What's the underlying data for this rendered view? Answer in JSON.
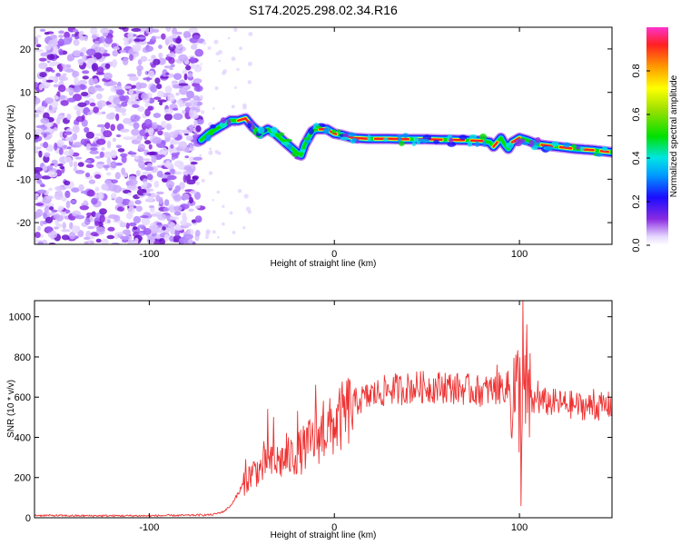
{
  "title": "S174.2025.298.02.34.R16",
  "chart_data": [
    {
      "type": "heatmap",
      "xlabel": "Height of straight line (km)",
      "ylabel": "Frequency (Hz)",
      "xlim": [
        -162,
        150
      ],
      "ylim": [
        -25,
        25
      ],
      "xticks": [
        "-100",
        "0",
        "100"
      ],
      "xtick_values": [
        -100,
        0,
        100
      ],
      "yticks": [
        "20",
        "10",
        "0",
        "-10",
        "-20"
      ],
      "ytick_values": [
        20,
        10,
        0,
        -10,
        -20
      ],
      "noise_region_x": [
        -162,
        -72
      ],
      "ridge": {
        "x": [
          -72,
          -68,
          -64,
          -60,
          -56,
          -52,
          -48,
          -44,
          -40,
          -36,
          -32,
          -28,
          -24,
          -20,
          -18,
          -16,
          -14,
          -12,
          -10,
          -8,
          -6,
          -4,
          0,
          4,
          10,
          20,
          30,
          40,
          50,
          60,
          70,
          80,
          84,
          86,
          88,
          90,
          92,
          94,
          96,
          100,
          104,
          110,
          120,
          130,
          140,
          150
        ],
        "y": [
          -1,
          0.5,
          1.5,
          2.5,
          3.5,
          3.5,
          4,
          2,
          0.5,
          1.5,
          0.5,
          -1,
          -2.5,
          -4,
          -4.5,
          -2,
          -0.5,
          1,
          1.5,
          1.5,
          1.5,
          1.5,
          0.5,
          0.2,
          -0.5,
          -0.7,
          -0.7,
          -0.8,
          -0.8,
          -0.9,
          -1,
          -1.2,
          -1.5,
          -2.5,
          -1.5,
          -0.5,
          -2,
          -3,
          -1.5,
          -0.5,
          -1,
          -2,
          -2.5,
          -3,
          -3.3,
          -3.8
        ]
      },
      "colorbar": {
        "label": "Normalized spectral amplitude",
        "range": [
          0,
          1
        ],
        "ticks": [
          "0.0",
          "0.2",
          "0.4",
          "0.6",
          "0.8"
        ],
        "tick_values": [
          0,
          0.2,
          0.4,
          0.6,
          0.8
        ]
      }
    },
    {
      "type": "line",
      "color": "#ee3333",
      "xlabel": "Height of straight line (km)",
      "ylabel": "SNR (10 * v/v)",
      "xlim": [
        -162,
        150
      ],
      "ylim": [
        0,
        1080
      ],
      "xticks": [
        "-100",
        "0",
        "100"
      ],
      "xtick_values": [
        -100,
        0,
        100
      ],
      "yticks": [
        "0",
        "200",
        "400",
        "600",
        "800",
        "1000"
      ],
      "ytick_values": [
        0,
        200,
        400,
        600,
        800,
        1000
      ],
      "envelope": {
        "x": [
          -162,
          -140,
          -120,
          -100,
          -80,
          -66,
          -60,
          -56,
          -52,
          -48,
          -44,
          -40,
          -36,
          -30,
          -24,
          -18,
          -12,
          -6,
          0,
          6,
          12,
          18,
          24,
          30,
          36,
          44,
          50,
          60,
          70,
          80,
          88,
          92,
          96,
          100,
          102,
          104,
          110,
          120,
          130,
          140,
          150
        ],
        "y": [
          12,
          10,
          10,
          10,
          12,
          15,
          30,
          60,
          120,
          180,
          230,
          240,
          260,
          280,
          300,
          330,
          380,
          420,
          460,
          520,
          580,
          600,
          620,
          640,
          640,
          650,
          650,
          650,
          640,
          630,
          640,
          650,
          630,
          600,
          560,
          560,
          580,
          570,
          560,
          550,
          560
        ]
      },
      "spikes": [
        {
          "x": -48,
          "y": 290
        },
        {
          "x": -38,
          "y": 380
        },
        {
          "x": -36,
          "y": 540
        },
        {
          "x": -33,
          "y": 500
        },
        {
          "x": -26,
          "y": 420
        },
        {
          "x": -20,
          "y": 530
        },
        {
          "x": -10,
          "y": 660
        },
        {
          "x": -6,
          "y": 580
        },
        {
          "x": 20,
          "y": 660
        },
        {
          "x": 60,
          "y": 720
        },
        {
          "x": 88,
          "y": 760
        },
        {
          "x": 94,
          "y": 730
        },
        {
          "x": 98,
          "y": 810
        },
        {
          "x": 101,
          "y": 60
        },
        {
          "x": 102,
          "y": 1080
        },
        {
          "x": 104,
          "y": 960
        },
        {
          "x": 110,
          "y": 680
        },
        {
          "x": 140,
          "y": 640
        }
      ]
    }
  ]
}
